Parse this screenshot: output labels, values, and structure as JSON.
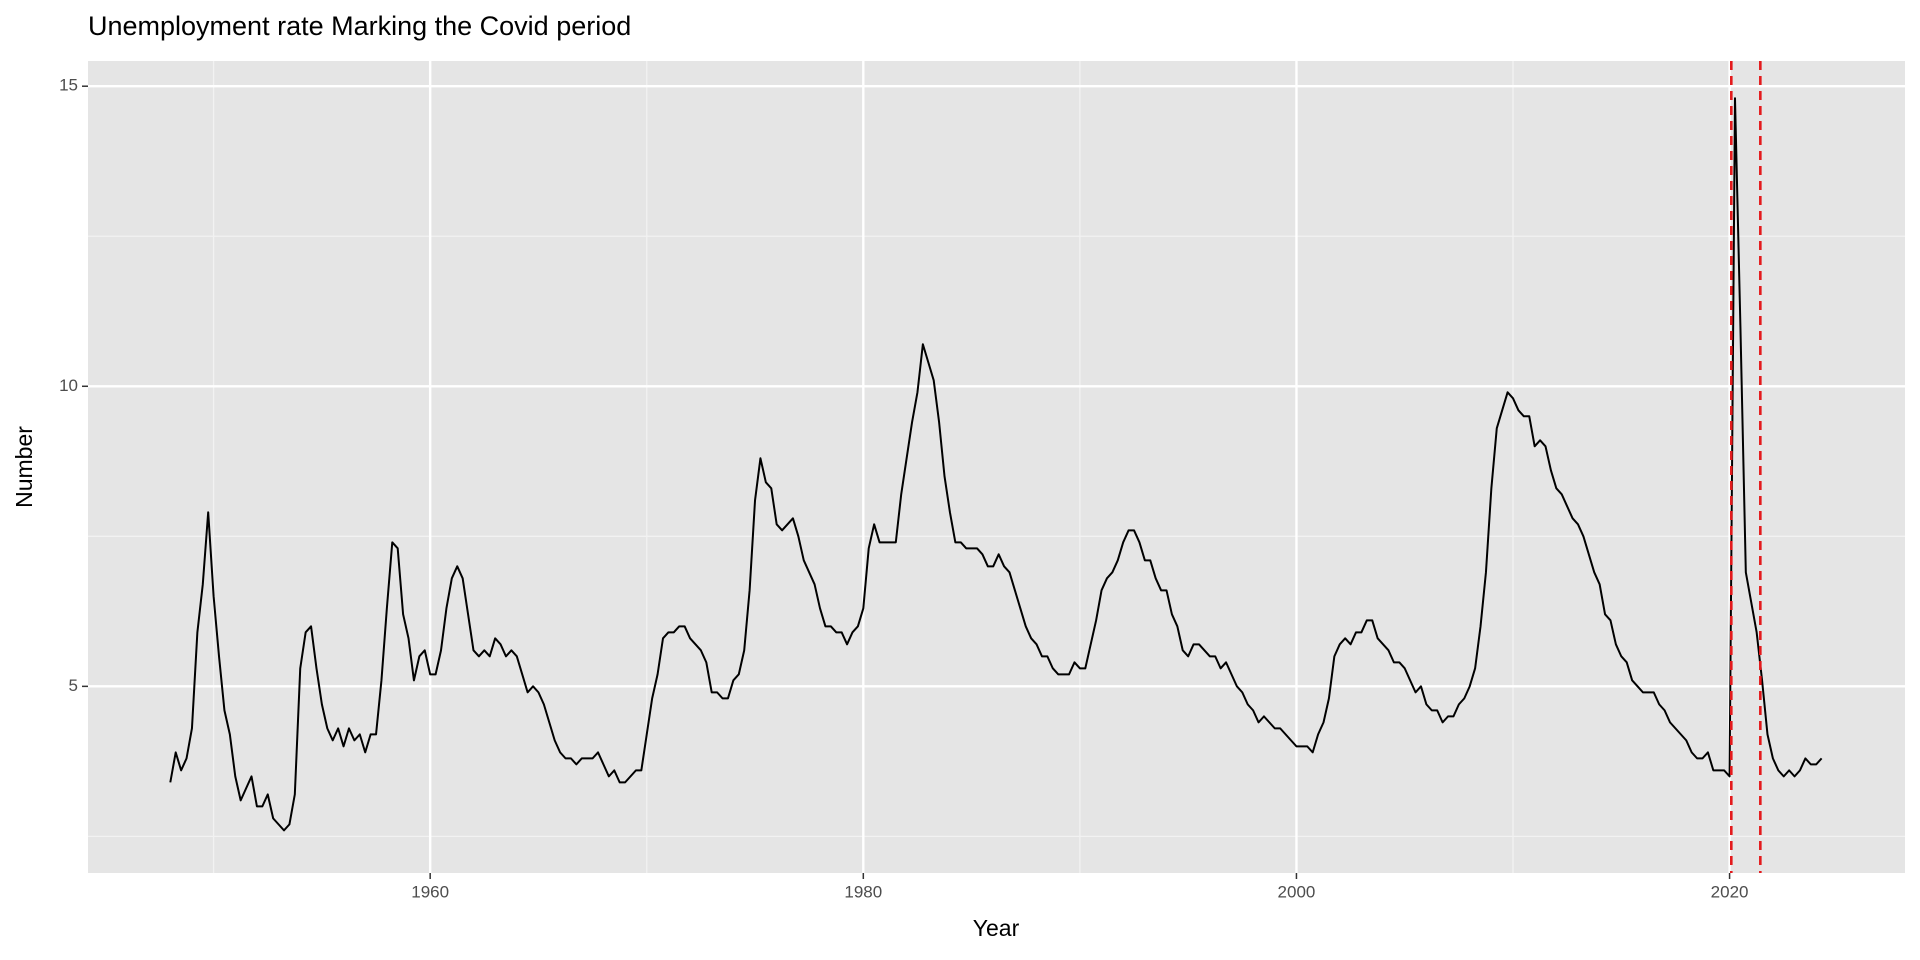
{
  "chart_data": {
    "type": "line",
    "title": "Unemployment rate Marking the Covid period",
    "x_label": "Year",
    "y_label": "Number",
    "x": [
      1948,
      1948.25,
      1948.5,
      1948.75,
      1949,
      1949.25,
      1949.5,
      1949.75,
      1950,
      1950.25,
      1950.5,
      1950.75,
      1951,
      1951.25,
      1951.5,
      1951.75,
      1952,
      1952.25,
      1952.5,
      1952.75,
      1953,
      1953.25,
      1953.5,
      1953.75,
      1954,
      1954.25,
      1954.5,
      1954.75,
      1955,
      1955.25,
      1955.5,
      1955.75,
      1956,
      1956.25,
      1956.5,
      1956.75,
      1957,
      1957.25,
      1957.5,
      1957.75,
      1958,
      1958.25,
      1958.5,
      1958.75,
      1959,
      1959.25,
      1959.5,
      1959.75,
      1960,
      1960.25,
      1960.5,
      1960.75,
      1961,
      1961.25,
      1961.5,
      1961.75,
      1962,
      1962.25,
      1962.5,
      1962.75,
      1963,
      1963.25,
      1963.5,
      1963.75,
      1964,
      1964.25,
      1964.5,
      1964.75,
      1965,
      1965.25,
      1965.5,
      1965.75,
      1966,
      1966.25,
      1966.5,
      1966.75,
      1967,
      1967.25,
      1967.5,
      1967.75,
      1968,
      1968.25,
      1968.5,
      1968.75,
      1969,
      1969.25,
      1969.5,
      1969.75,
      1970,
      1970.25,
      1970.5,
      1970.75,
      1971,
      1971.25,
      1971.5,
      1971.75,
      1972,
      1972.25,
      1972.5,
      1972.75,
      1973,
      1973.25,
      1973.5,
      1973.75,
      1974,
      1974.25,
      1974.5,
      1974.75,
      1975,
      1975.25,
      1975.5,
      1975.75,
      1976,
      1976.25,
      1976.5,
      1976.75,
      1977,
      1977.25,
      1977.5,
      1977.75,
      1978,
      1978.25,
      1978.5,
      1978.75,
      1979,
      1979.25,
      1979.5,
      1979.75,
      1980,
      1980.25,
      1980.5,
      1980.75,
      1981,
      1981.25,
      1981.5,
      1981.75,
      1982,
      1982.25,
      1982.5,
      1982.75,
      1983,
      1983.25,
      1983.5,
      1983.75,
      1984,
      1984.25,
      1984.5,
      1984.75,
      1985,
      1985.25,
      1985.5,
      1985.75,
      1986,
      1986.25,
      1986.5,
      1986.75,
      1987,
      1987.25,
      1987.5,
      1987.75,
      1988,
      1988.25,
      1988.5,
      1988.75,
      1989,
      1989.25,
      1989.5,
      1989.75,
      1990,
      1990.25,
      1990.5,
      1990.75,
      1991,
      1991.25,
      1991.5,
      1991.75,
      1992,
      1992.25,
      1992.5,
      1992.75,
      1993,
      1993.25,
      1993.5,
      1993.75,
      1994,
      1994.25,
      1994.5,
      1994.75,
      1995,
      1995.25,
      1995.5,
      1995.75,
      1996,
      1996.25,
      1996.5,
      1996.75,
      1997,
      1997.25,
      1997.5,
      1997.75,
      1998,
      1998.25,
      1998.5,
      1998.75,
      1999,
      1999.25,
      1999.5,
      1999.75,
      2000,
      2000.25,
      2000.5,
      2000.75,
      2001,
      2001.25,
      2001.5,
      2001.75,
      2002,
      2002.25,
      2002.5,
      2002.75,
      2003,
      2003.25,
      2003.5,
      2003.75,
      2004,
      2004.25,
      2004.5,
      2004.75,
      2005,
      2005.25,
      2005.5,
      2005.75,
      2006,
      2006.25,
      2006.5,
      2006.75,
      2007,
      2007.25,
      2007.5,
      2007.75,
      2008,
      2008.25,
      2008.5,
      2008.75,
      2009,
      2009.25,
      2009.5,
      2009.75,
      2010,
      2010.25,
      2010.5,
      2010.75,
      2011,
      2011.25,
      2011.5,
      2011.75,
      2012,
      2012.25,
      2012.5,
      2012.75,
      2013,
      2013.25,
      2013.5,
      2013.75,
      2014,
      2014.25,
      2014.5,
      2014.75,
      2015,
      2015.25,
      2015.5,
      2015.75,
      2016,
      2016.25,
      2016.5,
      2016.75,
      2017,
      2017.25,
      2017.5,
      2017.75,
      2018,
      2018.25,
      2018.5,
      2018.75,
      2019,
      2019.25,
      2019.5,
      2019.75,
      2020,
      2020.25,
      2020.5,
      2020.75,
      2021,
      2021.25,
      2021.5,
      2021.75,
      2022,
      2022.25,
      2022.5,
      2022.75,
      2023,
      2023.25,
      2023.5,
      2023.75,
      2024,
      2024.25
    ],
    "values": [
      3.4,
      3.9,
      3.6,
      3.8,
      4.3,
      5.9,
      6.7,
      7.9,
      6.5,
      5.5,
      4.6,
      4.2,
      3.5,
      3.1,
      3.3,
      3.5,
      3.0,
      3.0,
      3.2,
      2.8,
      2.7,
      2.6,
      2.7,
      3.2,
      5.3,
      5.9,
      6.0,
      5.3,
      4.7,
      4.3,
      4.1,
      4.3,
      4.0,
      4.3,
      4.1,
      4.2,
      3.9,
      4.2,
      4.2,
      5.1,
      6.3,
      7.4,
      7.3,
      6.2,
      5.8,
      5.1,
      5.5,
      5.6,
      5.2,
      5.2,
      5.6,
      6.3,
      6.8,
      7.0,
      6.8,
      6.2,
      5.6,
      5.5,
      5.6,
      5.5,
      5.8,
      5.7,
      5.5,
      5.6,
      5.5,
      5.2,
      4.9,
      5.0,
      4.9,
      4.7,
      4.4,
      4.1,
      3.9,
      3.8,
      3.8,
      3.7,
      3.8,
      3.8,
      3.8,
      3.9,
      3.7,
      3.5,
      3.6,
      3.4,
      3.4,
      3.5,
      3.6,
      3.6,
      4.2,
      4.8,
      5.2,
      5.8,
      5.9,
      5.9,
      6.0,
      6.0,
      5.8,
      5.7,
      5.6,
      5.4,
      4.9,
      4.9,
      4.8,
      4.8,
      5.1,
      5.2,
      5.6,
      6.6,
      8.1,
      8.8,
      8.4,
      8.3,
      7.7,
      7.6,
      7.7,
      7.8,
      7.5,
      7.1,
      6.9,
      6.7,
      6.3,
      6.0,
      6.0,
      5.9,
      5.9,
      5.7,
      5.9,
      6.0,
      6.3,
      7.3,
      7.7,
      7.4,
      7.4,
      7.4,
      7.4,
      8.2,
      8.8,
      9.4,
      9.9,
      10.7,
      10.4,
      10.1,
      9.4,
      8.5,
      7.9,
      7.4,
      7.4,
      7.3,
      7.3,
      7.3,
      7.2,
      7.0,
      7.0,
      7.2,
      7.0,
      6.9,
      6.6,
      6.3,
      6.0,
      5.8,
      5.7,
      5.5,
      5.5,
      5.3,
      5.2,
      5.2,
      5.2,
      5.4,
      5.3,
      5.3,
      5.7,
      6.1,
      6.6,
      6.8,
      6.9,
      7.1,
      7.4,
      7.6,
      7.6,
      7.4,
      7.1,
      7.1,
      6.8,
      6.6,
      6.6,
      6.2,
      6.0,
      5.6,
      5.5,
      5.7,
      5.7,
      5.6,
      5.5,
      5.5,
      5.3,
      5.4,
      5.2,
      5.0,
      4.9,
      4.7,
      4.6,
      4.4,
      4.5,
      4.4,
      4.3,
      4.3,
      4.2,
      4.1,
      4.0,
      4.0,
      4.0,
      3.9,
      4.2,
      4.4,
      4.8,
      5.5,
      5.7,
      5.8,
      5.7,
      5.9,
      5.9,
      6.1,
      6.1,
      5.8,
      5.7,
      5.6,
      5.4,
      5.4,
      5.3,
      5.1,
      4.9,
      5.0,
      4.7,
      4.6,
      4.6,
      4.4,
      4.5,
      4.5,
      4.7,
      4.8,
      5.0,
      5.3,
      6.0,
      6.9,
      8.3,
      9.3,
      9.6,
      9.9,
      9.8,
      9.6,
      9.5,
      9.5,
      9.0,
      9.1,
      9.0,
      8.6,
      8.3,
      8.2,
      8.0,
      7.8,
      7.7,
      7.5,
      7.2,
      6.9,
      6.7,
      6.2,
      6.1,
      5.7,
      5.5,
      5.4,
      5.1,
      5.0,
      4.9,
      4.9,
      4.9,
      4.7,
      4.6,
      4.4,
      4.3,
      4.2,
      4.1,
      3.9,
      3.8,
      3.8,
      3.9,
      3.6,
      3.6,
      3.6,
      3.5,
      14.8,
      11.0,
      6.9,
      6.4,
      5.9,
      5.1,
      4.2,
      3.8,
      3.6,
      3.5,
      3.6,
      3.5,
      3.6,
      3.8,
      3.7,
      3.7,
      3.8
    ],
    "color": "#000000",
    "vlines": [
      2020.08,
      2021.42
    ],
    "vline_color": "#e41a1c",
    "xlim": [
      1944.2,
      2028.1
    ],
    "xticks": [
      1960,
      1980,
      2000,
      2020
    ],
    "ylim": [
      1.89,
      15.42
    ],
    "yticks": [
      5,
      10,
      15
    ],
    "grid": true
  }
}
